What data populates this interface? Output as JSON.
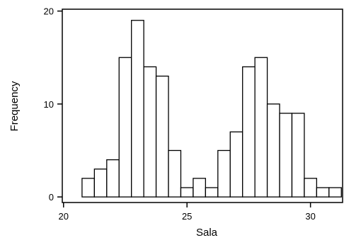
{
  "chart_data": {
    "type": "bar",
    "subtype": "histogram",
    "title": "",
    "xlabel": "Sala",
    "ylabel": "Frequency",
    "xlim": [
      19.95,
      31.3
    ],
    "ylim": [
      -0.6,
      20.2
    ],
    "xticks": [
      20,
      25,
      30
    ],
    "yticks": [
      0,
      10,
      20
    ],
    "bin_width": 0.5,
    "bins": [
      {
        "x0": 20.75,
        "x1": 21.25,
        "count": 2
      },
      {
        "x0": 21.25,
        "x1": 21.75,
        "count": 3
      },
      {
        "x0": 21.75,
        "x1": 22.25,
        "count": 4
      },
      {
        "x0": 22.25,
        "x1": 22.75,
        "count": 15
      },
      {
        "x0": 22.75,
        "x1": 23.25,
        "count": 19
      },
      {
        "x0": 23.25,
        "x1": 23.75,
        "count": 14
      },
      {
        "x0": 23.75,
        "x1": 24.25,
        "count": 13
      },
      {
        "x0": 24.25,
        "x1": 24.75,
        "count": 5
      },
      {
        "x0": 24.75,
        "x1": 25.25,
        "count": 1
      },
      {
        "x0": 25.25,
        "x1": 25.75,
        "count": 2
      },
      {
        "x0": 25.75,
        "x1": 26.25,
        "count": 1
      },
      {
        "x0": 26.25,
        "x1": 26.75,
        "count": 5
      },
      {
        "x0": 26.75,
        "x1": 27.25,
        "count": 7
      },
      {
        "x0": 27.25,
        "x1": 27.75,
        "count": 14
      },
      {
        "x0": 27.75,
        "x1": 28.25,
        "count": 15
      },
      {
        "x0": 28.25,
        "x1": 28.75,
        "count": 10
      },
      {
        "x0": 28.75,
        "x1": 29.25,
        "count": 9
      },
      {
        "x0": 29.25,
        "x1": 29.75,
        "count": 9
      },
      {
        "x0": 29.75,
        "x1": 30.25,
        "count": 2
      },
      {
        "x0": 30.25,
        "x1": 30.75,
        "count": 1
      },
      {
        "x0": 30.75,
        "x1": 31.25,
        "count": 1
      }
    ],
    "grid": false,
    "legend": "none",
    "colors": {
      "bar_fill": "#ffffff",
      "bar_stroke": "#000000",
      "axis": "#000000"
    }
  }
}
